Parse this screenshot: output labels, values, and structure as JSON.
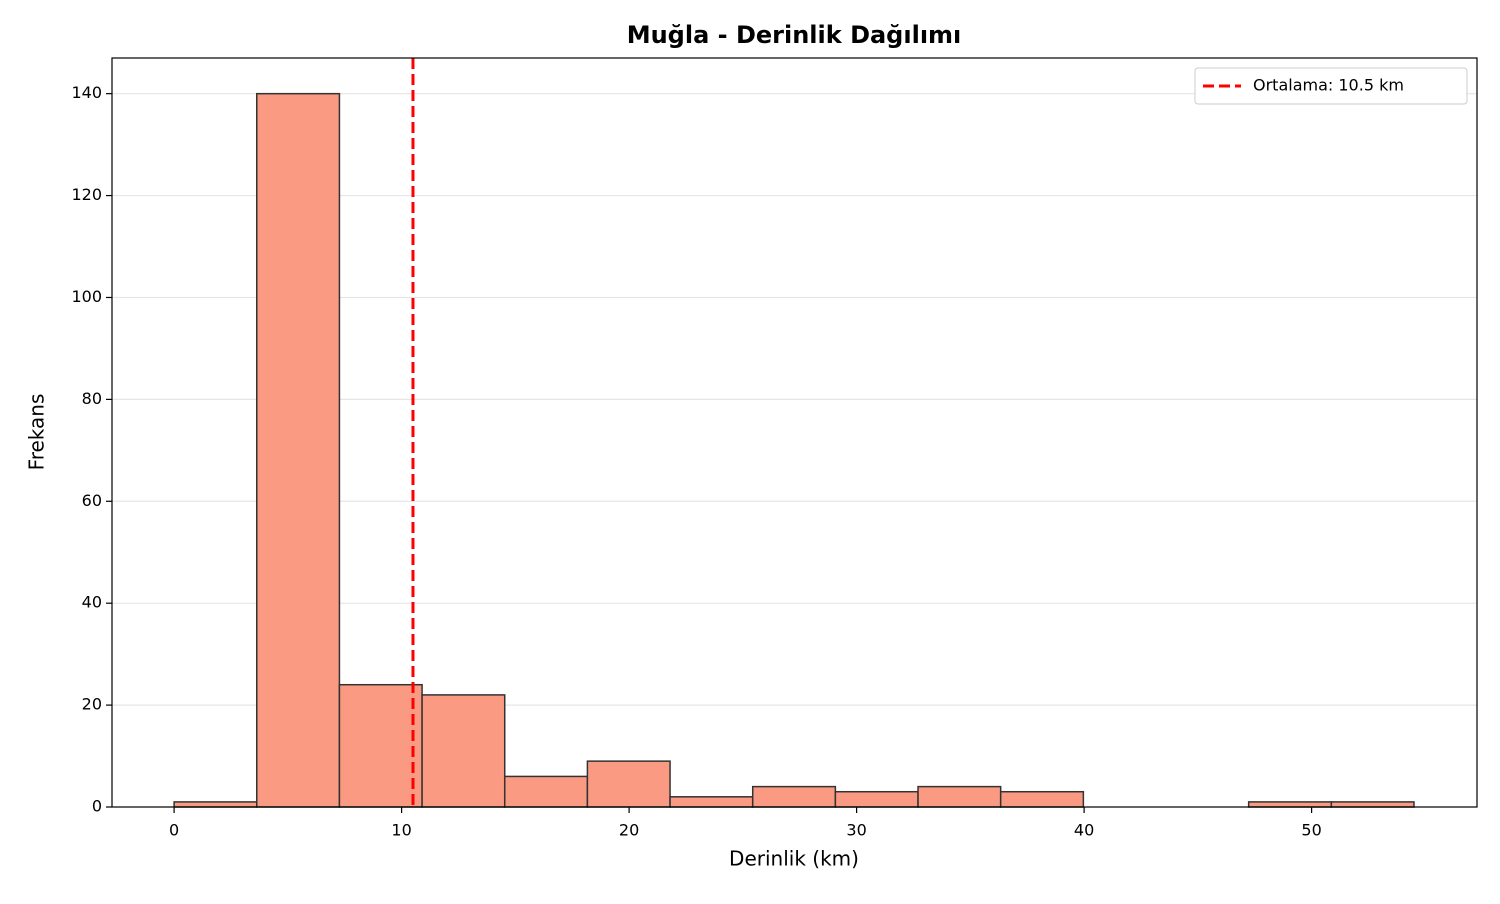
{
  "chart_data": {
    "type": "histogram",
    "title": "Muğla - Derinlik Dağılımı",
    "x_label": "Derinlik (km)",
    "y_label": "Frekans",
    "bins": [
      0,
      3.633,
      7.267,
      10.9,
      14.533,
      18.167,
      21.8,
      25.433,
      29.067,
      32.7,
      36.333,
      39.967,
      43.6,
      47.233,
      50.867,
      54.5
    ],
    "values": [
      1,
      140,
      24,
      22,
      6,
      9,
      2,
      4,
      3,
      4,
      3,
      0,
      0,
      1,
      1
    ],
    "color": "#fa9a82",
    "edgecolor": "#333333",
    "xlim": [
      -2.73,
      57.27
    ],
    "xticks": [
      0,
      10,
      20,
      30,
      40,
      50
    ],
    "ylim": [
      0,
      147
    ],
    "yticks": [
      0,
      20,
      40,
      60,
      80,
      100,
      120,
      140
    ],
    "grid": true,
    "mean_line": {
      "value": 10.5,
      "label": "Ortalama: 10.5 km",
      "color": "#ff0000"
    },
    "legend": "upper right"
  }
}
